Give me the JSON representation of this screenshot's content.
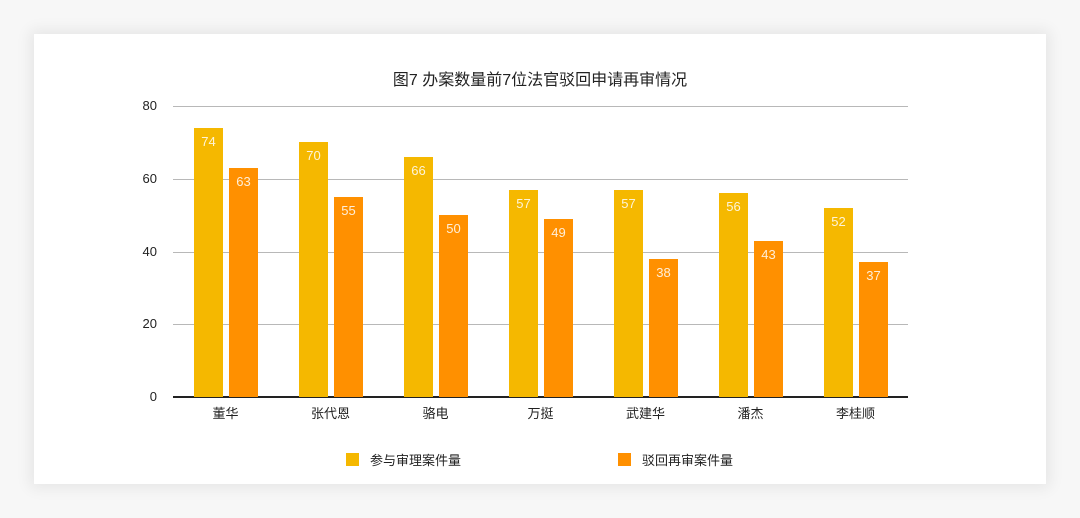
{
  "card": {},
  "chart_data": {
    "type": "bar",
    "title": "图7  办案数量前7位法官驳回申请再审情况",
    "categories": [
      "董华",
      "张代恩",
      "骆电",
      "万挺",
      "武建华",
      "潘杰",
      "李桂顺"
    ],
    "series": [
      {
        "name": "参与审理案件量",
        "color": "#f5b800",
        "values": [
          74,
          70,
          66,
          57,
          57,
          56,
          52
        ]
      },
      {
        "name": "驳回再审案件量",
        "color": "#ff9000",
        "values": [
          63,
          55,
          50,
          49,
          38,
          43,
          37
        ]
      }
    ],
    "xlabel": "",
    "ylabel": "",
    "ylim": [
      0,
      80
    ],
    "yticks": [
      "0",
      "20",
      "40",
      "60",
      "80"
    ],
    "grid": true,
    "legend_position": "bottom",
    "data_labels": true
  }
}
